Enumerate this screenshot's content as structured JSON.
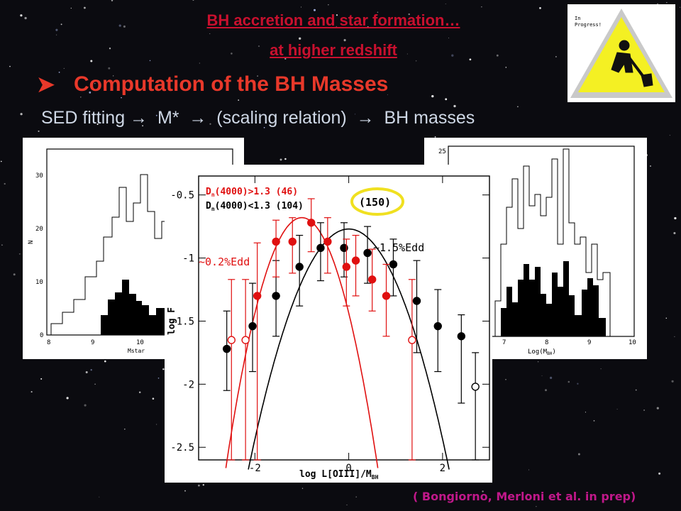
{
  "header": {
    "title_line1": "BH accretion and star formation…",
    "title_line2": "at higher redshift",
    "bullet": "➤",
    "bullet_title": "Computation of the BH Masses",
    "sed_line": "SED fitting →  M*  →  (scaling relation)  →  BH masses"
  },
  "badge": {
    "text_line1": "In",
    "text_line2": "Progress!"
  },
  "left_panel": {
    "xlabel": "Mstar",
    "ylabel": "N",
    "x_ticks": [
      "8",
      "9",
      "10"
    ],
    "y_ticks": [
      "0",
      "10",
      "20",
      "30"
    ]
  },
  "right_panel": {
    "xlabel": "Log(M",
    "xlabel_sub": "BH",
    "xlabel_end": ")",
    "x_ticks": [
      "7",
      "8",
      "9",
      "10"
    ],
    "y_ticks": [
      "25"
    ]
  },
  "main_chart": {
    "legend_red_1": "D",
    "legend_red_sub": "n",
    "legend_red_2": "(4000)>1.3 (46)",
    "legend_black_1": "D",
    "legend_black_sub": "n",
    "legend_black_2": "(4000)<1.3 (104)",
    "count_badge": "(150)",
    "label_black": "~1.5%Edd",
    "label_red": "~0.2%Edd",
    "ylabel": "log F",
    "xlabel_1": "log L[OIII]/M",
    "xlabel_sub": "BH",
    "colors": {
      "red": "#e01010",
      "black": "#000000",
      "badge": "#f0e020"
    }
  },
  "citation": "( Bongiorno, Merloni et al. in prep)",
  "chart_data": {
    "type": "scatter",
    "xlim": [
      -3.2,
      3.0
    ],
    "ylim": [
      -2.6,
      -0.35
    ],
    "x_ticks": [
      -2,
      0,
      2
    ],
    "x_tick_labels": [
      "-2",
      "0",
      "2"
    ],
    "y_ticks": [
      -0.5,
      -1,
      -1.5,
      -2,
      -2.5
    ],
    "y_tick_labels": [
      "-0.5",
      "-1",
      "-1.5",
      "-2",
      "-2.5"
    ],
    "series": [
      {
        "name": "Dn(4000)<1.3 (104)",
        "color": "#000000",
        "points": [
          {
            "x": -2.6,
            "y": -1.72,
            "lo": -2.05,
            "hi": -1.42,
            "open": false
          },
          {
            "x": -2.05,
            "y": -1.54,
            "lo": -1.9,
            "hi": -1.2,
            "open": false
          },
          {
            "x": -1.55,
            "y": -1.3,
            "lo": -1.62,
            "hi": -1.02,
            "open": false
          },
          {
            "x": -1.05,
            "y": -1.07,
            "lo": -1.38,
            "hi": -0.82,
            "open": false
          },
          {
            "x": -0.6,
            "y": -0.92,
            "lo": -1.18,
            "hi": -0.72,
            "open": false
          },
          {
            "x": -0.1,
            "y": -0.92,
            "lo": -1.15,
            "hi": -0.72,
            "open": false
          },
          {
            "x": 0.4,
            "y": -0.96,
            "lo": -1.2,
            "hi": -0.75,
            "open": false
          },
          {
            "x": 0.95,
            "y": -1.05,
            "lo": -1.3,
            "hi": -0.85,
            "open": false
          },
          {
            "x": 1.45,
            "y": -1.34,
            "lo": -1.75,
            "hi": -1.02,
            "open": false
          },
          {
            "x": 1.9,
            "y": -1.54,
            "lo": -1.9,
            "hi": -1.25,
            "open": false
          },
          {
            "x": 2.4,
            "y": -1.62,
            "lo": -2.15,
            "hi": -1.45,
            "open": false
          },
          {
            "x": 2.7,
            "y": -2.02,
            "lo": -2.6,
            "hi": -1.75,
            "open": true
          }
        ]
      },
      {
        "name": "Dn(4000)>1.3 (46)",
        "color": "#e01010",
        "points": [
          {
            "x": -2.5,
            "y": -1.65,
            "lo": -2.6,
            "hi": -1.17,
            "open": true
          },
          {
            "x": -2.2,
            "y": -1.65,
            "lo": -2.6,
            "hi": -1.17,
            "open": true
          },
          {
            "x": -1.95,
            "y": -1.3,
            "lo": -2.6,
            "hi": -0.88,
            "open": false
          },
          {
            "x": -1.55,
            "y": -0.87,
            "lo": -1.15,
            "hi": -0.7,
            "open": false
          },
          {
            "x": -1.2,
            "y": -0.87,
            "lo": -1.12,
            "hi": -0.68,
            "open": false
          },
          {
            "x": -0.8,
            "y": -0.72,
            "lo": -0.95,
            "hi": -0.53,
            "open": false
          },
          {
            "x": -0.45,
            "y": -0.87,
            "lo": -1.12,
            "hi": -0.68,
            "open": false
          },
          {
            "x": -0.05,
            "y": -1.07,
            "lo": -1.38,
            "hi": -0.85,
            "open": false
          },
          {
            "x": 0.15,
            "y": -1.02,
            "lo": -1.3,
            "hi": -0.82,
            "open": false
          },
          {
            "x": 0.5,
            "y": -1.17,
            "lo": -1.42,
            "hi": -0.93,
            "open": false
          },
          {
            "x": 0.8,
            "y": -1.3,
            "lo": -1.62,
            "hi": -1.05,
            "open": false
          },
          {
            "x": 1.35,
            "y": -1.65,
            "lo": -2.6,
            "hi": -1.17,
            "open": true
          }
        ]
      }
    ],
    "curves": [
      {
        "color": "#000000",
        "peak_x": 0.0,
        "peak_y": -0.77,
        "width": 1.55
      },
      {
        "color": "#e01010",
        "peak_x": -1.0,
        "peak_y": -0.68,
        "width": 1.15
      }
    ]
  }
}
